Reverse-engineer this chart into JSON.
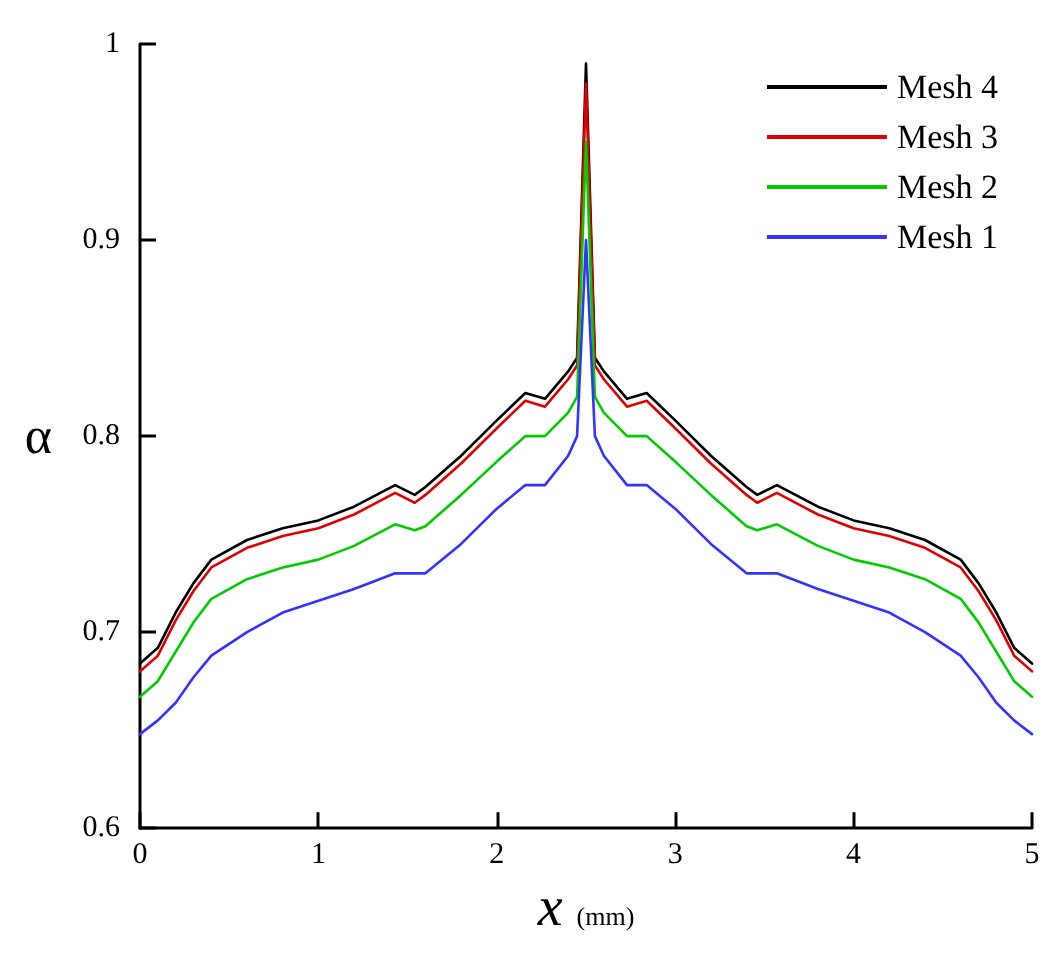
{
  "chart_data": {
    "type": "line",
    "xlabel": "x (mm)",
    "ylabel": "α",
    "x": [
      0,
      0.1,
      0.2,
      0.3,
      0.4,
      0.6,
      0.8,
      1.0,
      1.2,
      1.43,
      1.54,
      1.6,
      1.8,
      2.0,
      2.16,
      2.27,
      2.4,
      2.45,
      2.5,
      2.55,
      2.6,
      2.73,
      2.84,
      3.0,
      3.2,
      3.4,
      3.46,
      3.57,
      3.8,
      4.0,
      4.2,
      4.4,
      4.6,
      4.7,
      4.8,
      4.9,
      5.0
    ],
    "series": [
      {
        "name": "Mesh 4",
        "color": "#000000",
        "values": [
          0.684,
          0.692,
          0.71,
          0.725,
          0.737,
          0.747,
          0.753,
          0.757,
          0.764,
          0.775,
          0.77,
          0.774,
          0.79,
          0.808,
          0.822,
          0.819,
          0.833,
          0.84,
          0.99,
          0.84,
          0.833,
          0.819,
          0.822,
          0.808,
          0.79,
          0.774,
          0.77,
          0.775,
          0.764,
          0.757,
          0.753,
          0.747,
          0.737,
          0.725,
          0.71,
          0.692,
          0.684
        ]
      },
      {
        "name": "Mesh 3",
        "color": "#e00000",
        "values": [
          0.68,
          0.688,
          0.706,
          0.721,
          0.733,
          0.743,
          0.749,
          0.753,
          0.76,
          0.771,
          0.766,
          0.77,
          0.786,
          0.804,
          0.818,
          0.815,
          0.829,
          0.836,
          0.98,
          0.836,
          0.829,
          0.815,
          0.818,
          0.804,
          0.786,
          0.77,
          0.766,
          0.771,
          0.76,
          0.753,
          0.749,
          0.743,
          0.733,
          0.721,
          0.706,
          0.688,
          0.68
        ]
      },
      {
        "name": "Mesh 2",
        "color": "#00cc00",
        "values": [
          0.667,
          0.675,
          0.69,
          0.705,
          0.717,
          0.727,
          0.733,
          0.737,
          0.744,
          0.755,
          0.752,
          0.754,
          0.77,
          0.787,
          0.8,
          0.8,
          0.812,
          0.82,
          0.95,
          0.82,
          0.812,
          0.8,
          0.8,
          0.787,
          0.77,
          0.754,
          0.752,
          0.755,
          0.744,
          0.737,
          0.733,
          0.727,
          0.717,
          0.705,
          0.69,
          0.675,
          0.667
        ]
      },
      {
        "name": "Mesh 1",
        "color": "#3333ff",
        "values": [
          0.648,
          0.655,
          0.664,
          0.677,
          0.688,
          0.7,
          0.71,
          0.716,
          0.722,
          0.73,
          0.73,
          0.73,
          0.745,
          0.763,
          0.775,
          0.775,
          0.79,
          0.8,
          0.9,
          0.8,
          0.79,
          0.775,
          0.775,
          0.763,
          0.745,
          0.73,
          0.73,
          0.73,
          0.722,
          0.716,
          0.71,
          0.7,
          0.688,
          0.677,
          0.664,
          0.655,
          0.648
        ]
      }
    ],
    "xlim": [
      0,
      5
    ],
    "xticks": [
      0,
      1,
      2,
      3,
      4,
      5
    ],
    "ylim": [
      0.6,
      1
    ],
    "yticks": [
      0.6,
      0.7,
      0.8,
      0.9,
      1
    ],
    "grid": false,
    "legend": "top right",
    "marker": "none",
    "line_style": "solid"
  }
}
